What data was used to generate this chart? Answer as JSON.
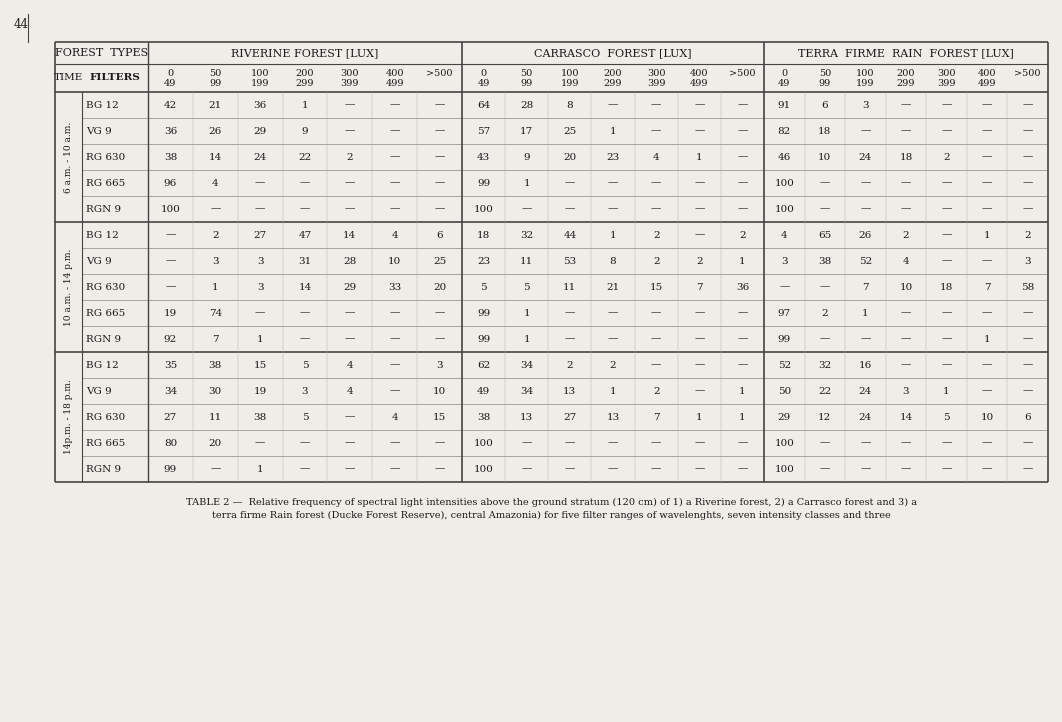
{
  "page_number": "44",
  "caption_line1": "TABLE 2 —  Relative frequency of spectral light intensities above the ground stratum (120 cm) of 1) a Riverine forest, 2) a Carrasco forest and 3) a",
  "caption_line2": "terra firme Rain forest (Ducke Forest Reserve), central Amazonia) for five filter ranges of wavelenghts, seven intensity classes and three",
  "header_forest_types": "FOREST  TYPES",
  "header_riverine": "RIVERINE FOREST [LUX]",
  "header_carrasco": "CARRASCO  FOREST [LUX]",
  "header_terra": "TERRA  FIRME  RAIN  FOREST [LUX]",
  "col_time": "TIME",
  "col_filters": "FILTERS",
  "lux_top": [
    "0",
    "50",
    "100",
    "200",
    "300",
    "400",
    ">500"
  ],
  "lux_bot": [
    "49",
    "99",
    "199",
    "299",
    "399",
    "499",
    ""
  ],
  "time_groups": [
    {
      "label": "6 a.m. - 10 a.m.",
      "rows": [
        {
          "filter": "BG 12",
          "riverine": [
            "42",
            "21",
            "36",
            "1",
            "—",
            "—",
            "—"
          ],
          "carrasco": [
            "64",
            "28",
            "8",
            "—",
            "—",
            "—",
            "—"
          ],
          "terra": [
            "91",
            "6",
            "3",
            "—",
            "—",
            "—",
            "—"
          ]
        },
        {
          "filter": "VG 9",
          "riverine": [
            "36",
            "26",
            "29",
            "9",
            "—",
            "—",
            "—"
          ],
          "carrasco": [
            "57",
            "17",
            "25",
            "1",
            "—",
            "—",
            "—"
          ],
          "terra": [
            "82",
            "18",
            "—",
            "—",
            "—",
            "—",
            "—"
          ]
        },
        {
          "filter": "RG 630",
          "riverine": [
            "38",
            "14",
            "24",
            "22",
            "2",
            "—",
            "—"
          ],
          "carrasco": [
            "43",
            "9",
            "20",
            "23",
            "4",
            "1",
            "—"
          ],
          "terra": [
            "46",
            "10",
            "24",
            "18",
            "2",
            "—",
            "—"
          ]
        },
        {
          "filter": "RG 665",
          "riverine": [
            "96",
            "4",
            "—",
            "—",
            "—",
            "—",
            "—"
          ],
          "carrasco": [
            "99",
            "1",
            "—",
            "—",
            "—",
            "—",
            "—"
          ],
          "terra": [
            "100",
            "—",
            "—",
            "—",
            "—",
            "—",
            "—"
          ]
        },
        {
          "filter": "RGN 9",
          "riverine": [
            "100",
            "—",
            "—",
            "—",
            "—",
            "—",
            "—"
          ],
          "carrasco": [
            "100",
            "—",
            "—",
            "—",
            "—",
            "—",
            "—"
          ],
          "terra": [
            "100",
            "—",
            "—",
            "—",
            "—",
            "—",
            "—"
          ]
        }
      ]
    },
    {
      "label": "10 a.m. - 14 p.m.",
      "rows": [
        {
          "filter": "BG 12",
          "riverine": [
            "—",
            "2",
            "27",
            "47",
            "14",
            "4",
            "6"
          ],
          "carrasco": [
            "18",
            "32",
            "44",
            "1",
            "2",
            "—",
            "2"
          ],
          "terra": [
            "4",
            "65",
            "26",
            "2",
            "—",
            "1",
            "2"
          ]
        },
        {
          "filter": "VG 9",
          "riverine": [
            "—",
            "3",
            "3",
            "31",
            "28",
            "10",
            "25"
          ],
          "carrasco": [
            "23",
            "11",
            "53",
            "8",
            "2",
            "2",
            "1"
          ],
          "terra": [
            "3",
            "38",
            "52",
            "4",
            "—",
            "—",
            "3"
          ]
        },
        {
          "filter": "RG 630",
          "riverine": [
            "—",
            "1",
            "3",
            "14",
            "29",
            "33",
            "20"
          ],
          "carrasco": [
            "5",
            "5",
            "11",
            "21",
            "15",
            "7",
            "36"
          ],
          "terra": [
            "—",
            "—",
            "7",
            "10",
            "18",
            "7",
            "58"
          ]
        },
        {
          "filter": "RG 665",
          "riverine": [
            "19",
            "74",
            "—",
            "—",
            "—",
            "—",
            "—"
          ],
          "carrasco": [
            "99",
            "1",
            "—",
            "—",
            "—",
            "—",
            "—"
          ],
          "terra": [
            "97",
            "2",
            "1",
            "—",
            "—",
            "—",
            "—"
          ]
        },
        {
          "filter": "RGN 9",
          "riverine": [
            "92",
            "7",
            "1",
            "—",
            "—",
            "—",
            "—"
          ],
          "carrasco": [
            "99",
            "1",
            "—",
            "—",
            "—",
            "—",
            "—"
          ],
          "terra": [
            "99",
            "—",
            "—",
            "—",
            "—",
            "1",
            "—"
          ]
        }
      ]
    },
    {
      "label": "14p.m. - 18 p.m.",
      "rows": [
        {
          "filter": "BG 12",
          "riverine": [
            "35",
            "38",
            "15",
            "5",
            "4",
            "—",
            "3"
          ],
          "carrasco": [
            "62",
            "34",
            "2",
            "2",
            "—",
            "—",
            "—"
          ],
          "terra": [
            "52",
            "32",
            "16",
            "—",
            "—",
            "—",
            "—"
          ]
        },
        {
          "filter": "VG 9",
          "riverine": [
            "34",
            "30",
            "19",
            "3",
            "4",
            "—",
            "10"
          ],
          "carrasco": [
            "49",
            "34",
            "13",
            "1",
            "2",
            "—",
            "1"
          ],
          "terra": [
            "50",
            "22",
            "24",
            "3",
            "1",
            "—",
            "—"
          ]
        },
        {
          "filter": "RG 630",
          "riverine": [
            "27",
            "11",
            "38",
            "5",
            "—",
            "4",
            "15"
          ],
          "carrasco": [
            "38",
            "13",
            "27",
            "13",
            "7",
            "1",
            "1"
          ],
          "terra": [
            "29",
            "12",
            "24",
            "14",
            "5",
            "10",
            "6"
          ]
        },
        {
          "filter": "RG 665",
          "riverine": [
            "80",
            "20",
            "—",
            "—",
            "—",
            "—",
            "—"
          ],
          "carrasco": [
            "100",
            "—",
            "—",
            "—",
            "—",
            "—",
            "—"
          ],
          "terra": [
            "100",
            "—",
            "—",
            "—",
            "—",
            "—",
            "—"
          ]
        },
        {
          "filter": "RGN 9",
          "riverine": [
            "99",
            "—",
            "1",
            "—",
            "—",
            "—",
            "—"
          ],
          "carrasco": [
            "100",
            "—",
            "—",
            "—",
            "—",
            "—",
            "—"
          ],
          "terra": [
            "100",
            "—",
            "—",
            "—",
            "—",
            "—",
            "—"
          ]
        }
      ]
    }
  ],
  "bg_color": "#f0ede8",
  "text_color": "#1a1a1a",
  "line_color": "#444444",
  "fs_header": 8.0,
  "fs_subheader": 7.5,
  "fs_data": 7.5,
  "fs_caption": 7.0,
  "fs_time": 6.5,
  "fs_pageno": 8.5
}
